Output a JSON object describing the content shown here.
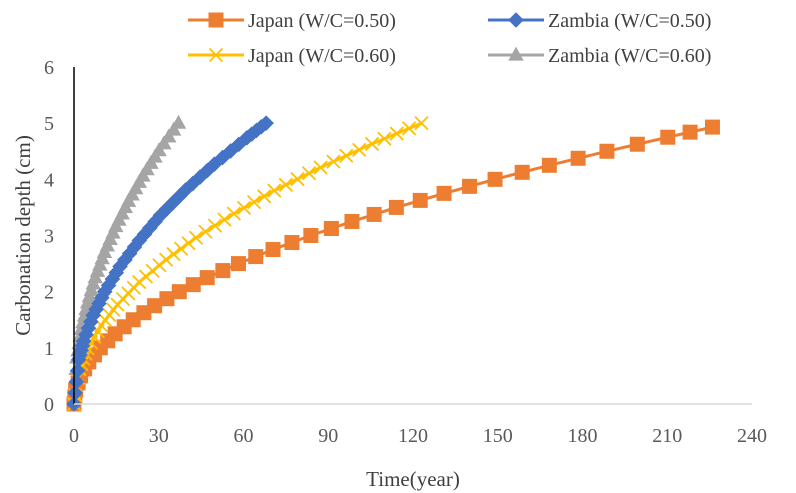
{
  "chart_data": {
    "type": "line",
    "title": "",
    "xlabel": "Time(year)",
    "ylabel": "Carbonation depth (cm)",
    "xlim": [
      0,
      240
    ],
    "ylim": [
      0,
      6
    ],
    "xticks": [
      0,
      30,
      60,
      90,
      120,
      150,
      180,
      210,
      240
    ],
    "yticks": [
      0,
      1,
      2,
      3,
      4,
      5,
      6
    ],
    "grid": false,
    "legend": "top",
    "series": [
      {
        "name": "Japan (W/C=0.50)",
        "color": "#ED7D31",
        "marker": "square",
        "x": [
          0,
          0.58,
          2.33,
          5.24,
          9.31,
          14.56,
          20.96,
          28.53,
          37.26,
          47.16,
          58.22,
          70.45,
          83.84,
          98.39,
          114.11,
          131.0,
          149.05,
          168.26,
          188.64,
          210.18,
          226.0
        ],
        "y": [
          0,
          0.25,
          0.5,
          0.75,
          1.0,
          1.25,
          1.5,
          1.75,
          2.0,
          2.25,
          2.5,
          2.75,
          3.0,
          3.25,
          3.5,
          3.75,
          4.0,
          4.25,
          4.5,
          4.75,
          4.93
        ]
      },
      {
        "name": "Zambia (W/C=0.50)",
        "color": "#4472C4",
        "marker": "diamond",
        "x": [
          0,
          1.7,
          3.4,
          6.8,
          10.9,
          16.3,
          23.1,
          30.6,
          39.5,
          49.7,
          61.2,
          68.0
        ],
        "y": [
          0,
          0.79,
          1.12,
          1.58,
          2.0,
          2.45,
          2.91,
          3.36,
          3.81,
          4.27,
          4.74,
          5.0
        ]
      },
      {
        "name": "Japan (W/C=0.60)",
        "color": "#FFC000",
        "marker": "x",
        "x": [
          0,
          1.9,
          4.8,
          9.6,
          15.4,
          23.1,
          32.6,
          43.2,
          56.6,
          70.9,
          87.3,
          105.5,
          123.0
        ],
        "y": [
          0,
          0.62,
          0.99,
          1.4,
          1.77,
          2.17,
          2.57,
          2.96,
          3.39,
          3.8,
          4.21,
          4.63,
          5.0
        ]
      },
      {
        "name": "Zambia (W/C=0.60)",
        "color": "#A5A5A5",
        "marker": "triangle",
        "x": [
          0,
          1.0,
          2.6,
          4.8,
          7.5,
          10.8,
          14.8,
          19.3,
          24.4,
          30.1,
          37.0
        ],
        "y": [
          0,
          0.82,
          1.33,
          1.8,
          2.25,
          2.7,
          3.16,
          3.61,
          4.06,
          4.51,
          5.0
        ]
      }
    ]
  }
}
